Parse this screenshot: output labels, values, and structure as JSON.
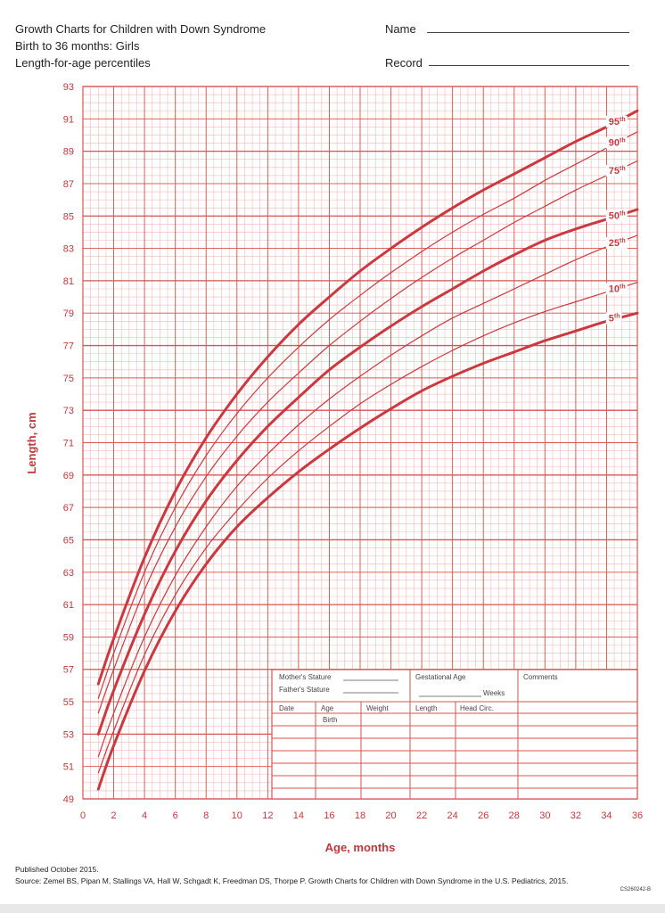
{
  "header": {
    "title": "Growth Charts for Children with Down Syndrome",
    "subtitle1": "Birth to 36 months: Girls",
    "subtitle2": "Length-for-age percentiles",
    "name_label": "Name",
    "record_label": "Record"
  },
  "chart_data": {
    "type": "line",
    "xlabel": "Age, months",
    "ylabel": "Length, cm",
    "xlim": [
      0,
      36
    ],
    "ylim": [
      49,
      93
    ],
    "xticks": [
      0,
      2,
      4,
      6,
      8,
      10,
      12,
      14,
      16,
      18,
      20,
      22,
      24,
      26,
      28,
      30,
      32,
      34,
      36
    ],
    "yticks": [
      49,
      51,
      53,
      55,
      57,
      59,
      61,
      63,
      65,
      67,
      69,
      71,
      73,
      75,
      77,
      79,
      81,
      83,
      85,
      87,
      89,
      91,
      93
    ],
    "grid": true,
    "x": [
      1,
      2,
      4,
      6,
      8,
      10,
      12,
      14,
      16,
      18,
      20,
      22,
      24,
      26,
      28,
      30,
      32,
      34,
      36
    ],
    "series": [
      {
        "name": "95",
        "bold": true,
        "values": [
          56.1,
          58.9,
          63.9,
          68.0,
          71.3,
          74.0,
          76.3,
          78.3,
          80.0,
          81.6,
          83.0,
          84.3,
          85.5,
          86.6,
          87.6,
          88.6,
          89.6,
          90.5,
          91.5
        ]
      },
      {
        "name": "90",
        "bold": false,
        "values": [
          55.2,
          58.0,
          63.0,
          67.0,
          70.2,
          72.8,
          75.0,
          76.9,
          78.6,
          80.1,
          81.5,
          82.8,
          84.0,
          85.1,
          86.1,
          87.2,
          88.2,
          89.2,
          90.2
        ]
      },
      {
        "name": "75",
        "bold": false,
        "values": [
          54.3,
          57.0,
          61.9,
          65.8,
          68.9,
          71.4,
          73.5,
          75.3,
          77.0,
          78.5,
          79.9,
          81.2,
          82.4,
          83.5,
          84.6,
          85.6,
          86.6,
          87.5,
          88.4
        ]
      },
      {
        "name": "50",
        "bold": true,
        "values": [
          53.0,
          55.7,
          60.4,
          64.3,
          67.4,
          69.9,
          72.0,
          73.8,
          75.5,
          76.9,
          78.2,
          79.4,
          80.5,
          81.6,
          82.6,
          83.5,
          84.2,
          84.8,
          85.4
        ]
      },
      {
        "name": "25",
        "bold": false,
        "values": [
          51.6,
          54.3,
          59.0,
          62.8,
          65.8,
          68.3,
          70.3,
          72.1,
          73.7,
          75.1,
          76.4,
          77.6,
          78.7,
          79.6,
          80.5,
          81.4,
          82.3,
          83.1,
          83.8
        ]
      },
      {
        "name": "10",
        "bold": false,
        "values": [
          50.6,
          53.2,
          57.9,
          61.6,
          64.5,
          66.8,
          68.8,
          70.5,
          72.0,
          73.4,
          74.6,
          75.7,
          76.7,
          77.6,
          78.4,
          79.1,
          79.7,
          80.3,
          80.9
        ]
      },
      {
        "name": "5",
        "bold": true,
        "values": [
          49.6,
          52.3,
          56.9,
          60.6,
          63.5,
          65.8,
          67.6,
          69.2,
          70.6,
          71.9,
          73.1,
          74.2,
          75.1,
          75.9,
          76.6,
          77.3,
          77.9,
          78.5,
          79.0
        ]
      }
    ],
    "percentile_suffix": "th"
  },
  "table": {
    "mothers_stature": "Mother's Stature",
    "fathers_stature": "Father's Stature",
    "gestational_age": "Gestational Age",
    "weeks": "Weeks",
    "comments": "Comments",
    "columns": [
      "Date",
      "Age",
      "Weight",
      "Length",
      "Head Circ."
    ],
    "birth": "Birth"
  },
  "footer": {
    "published": "Published October 2015.",
    "source": "Source: Zemel BS, Pipan M, Stallings VA, Hall W, Schgadt K, Freedman DS, Thorpe P. Growth Charts for Children with Down Syndrome in the U.S. Pediatrics, 2015.",
    "code": "CS260242-B"
  },
  "colors": {
    "grid_major": "#d9534f",
    "grid_minor": "#f3b9b5",
    "curve": "#c9393f",
    "axis_text": "#c0393c"
  }
}
